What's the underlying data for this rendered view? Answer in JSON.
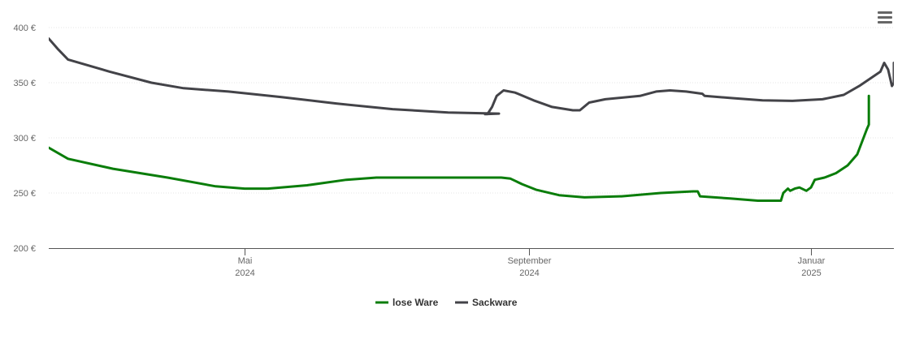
{
  "menu_icon": "hamburger-menu-icon",
  "chart_data": {
    "type": "line",
    "title": "",
    "xlabel": "",
    "ylabel": "",
    "ylim": [
      200,
      400
    ],
    "yticks": [
      200,
      250,
      300,
      350,
      400
    ],
    "ytick_labels": [
      "200 €",
      "250 €",
      "300 €",
      "350 €",
      "400 €"
    ],
    "xlim": [
      "2024-03-01",
      "2025-01-31"
    ],
    "xticks": [
      {
        "date": "2024-05-01",
        "label1": "Mai",
        "label2": "2024"
      },
      {
        "date": "2024-09-01",
        "label1": "September",
        "label2": "2024"
      },
      {
        "date": "2025-01-01",
        "label1": "Januar",
        "label2": "2025"
      }
    ],
    "grid": true,
    "legend_position": "bottom",
    "series": [
      {
        "name": "lose Ware",
        "color": "#0a7d0a",
        "points": [
          [
            "2024-03-01",
            291
          ],
          [
            "2024-03-07",
            281
          ],
          [
            "2024-03-21",
            272
          ],
          [
            "2024-04-07",
            264
          ],
          [
            "2024-04-22",
            256
          ],
          [
            "2024-05-01",
            254
          ],
          [
            "2024-05-11",
            254
          ],
          [
            "2024-05-28",
            257
          ],
          [
            "2024-06-14",
            262
          ],
          [
            "2024-06-27",
            264
          ],
          [
            "2024-07-11",
            264
          ],
          [
            "2024-08-01",
            264
          ],
          [
            "2024-08-20",
            264
          ],
          [
            "2024-08-24",
            263
          ],
          [
            "2024-08-29",
            258
          ],
          [
            "2024-09-04",
            253
          ],
          [
            "2024-09-14",
            248
          ],
          [
            "2024-09-25",
            246
          ],
          [
            "2024-10-11",
            247
          ],
          [
            "2024-10-28",
            250
          ],
          [
            "2024-11-11",
            251.5
          ],
          [
            "2024-11-13",
            251.5
          ],
          [
            "2024-11-14",
            247
          ],
          [
            "2024-11-27",
            245
          ],
          [
            "2024-12-09",
            243
          ],
          [
            "2024-12-19",
            243
          ],
          [
            "2024-12-20",
            250
          ],
          [
            "2024-12-21",
            252
          ],
          [
            "2024-12-22",
            254
          ],
          [
            "2024-12-23",
            252
          ],
          [
            "2024-12-25",
            254
          ],
          [
            "2024-12-27",
            255
          ],
          [
            "2024-12-30",
            252
          ],
          [
            "2025-01-01",
            255
          ],
          [
            "2025-01-03",
            262
          ],
          [
            "2025-01-08",
            264
          ],
          [
            "2025-01-14",
            268
          ],
          [
            "2025-01-20",
            275
          ],
          [
            "2025-01-25",
            285
          ],
          [
            "2025-01-30",
            308
          ],
          [
            "2025-01-31",
            312
          ],
          [
            "2025-01-31",
            328
          ],
          [
            "2025-01-31",
            338
          ]
        ]
      },
      {
        "name": "Sackware",
        "color": "#434348",
        "points": [
          [
            "2024-03-01",
            390
          ],
          [
            "2024-03-04",
            380
          ],
          [
            "2024-03-07",
            371
          ],
          [
            "2024-03-20",
            360
          ],
          [
            "2024-04-02",
            350
          ],
          [
            "2024-04-12",
            345
          ],
          [
            "2024-04-26",
            342
          ],
          [
            "2024-05-17",
            337
          ],
          [
            "2024-06-10",
            331
          ],
          [
            "2024-07-04",
            326
          ],
          [
            "2024-07-28",
            323
          ],
          [
            "2024-08-19",
            322
          ],
          [
            "2024-08-13",
            321.5
          ],
          [
            "2024-08-14",
            321.5
          ],
          [
            "2024-08-16",
            328
          ],
          [
            "2024-08-18",
            338
          ],
          [
            "2024-08-21",
            343
          ],
          [
            "2024-08-26",
            341
          ],
          [
            "2024-09-03",
            334
          ],
          [
            "2024-09-11",
            328
          ],
          [
            "2024-09-20",
            325
          ],
          [
            "2024-09-23",
            325
          ],
          [
            "2024-09-27",
            332
          ],
          [
            "2024-10-04",
            335
          ],
          [
            "2024-10-19",
            338
          ],
          [
            "2024-10-26",
            342
          ],
          [
            "2024-11-01",
            343
          ],
          [
            "2024-11-08",
            342
          ],
          [
            "2024-11-15",
            340
          ],
          [
            "2024-11-16",
            338
          ],
          [
            "2024-11-28",
            336
          ],
          [
            "2024-12-11",
            334
          ],
          [
            "2024-12-24",
            333.5
          ],
          [
            "2025-01-07",
            335
          ],
          [
            "2025-01-18",
            339
          ],
          [
            "2025-01-26",
            347
          ],
          [
            "2025-02-06",
            360
          ],
          [
            "2025-02-08",
            368
          ],
          [
            "2025-02-10",
            362
          ],
          [
            "2025-02-12",
            347
          ],
          [
            "2025-02-13",
            350
          ],
          [
            "2025-02-13",
            368
          ]
        ]
      }
    ]
  }
}
